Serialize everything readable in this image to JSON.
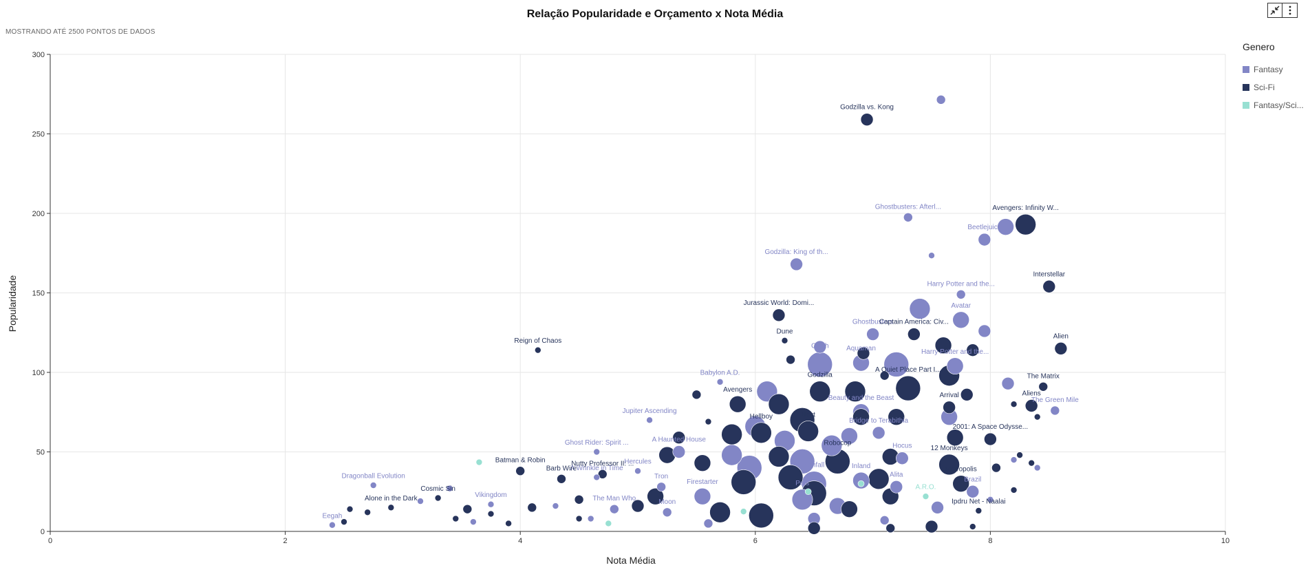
{
  "header": {
    "title": "Relação Popularidade e Orçamento x Nota Média",
    "subtitle": "MOSTRANDO ATÉ 2500 PONTOS DE DADOS"
  },
  "toolbar": {
    "collapse_icon": "collapse-arrows-icon",
    "menu_icon": "more-vertical-icon"
  },
  "legend": {
    "title": "Genero",
    "items": [
      {
        "label": "Fantasy",
        "color": "#8286c6"
      },
      {
        "label": "Sci-Fi",
        "color": "#27345b"
      },
      {
        "label": "Fantasy/Sci...",
        "color": "#98e0d2"
      }
    ]
  },
  "chart_data": {
    "type": "scatter",
    "title": "Relação Popularidade e Orçamento x Nota Média",
    "xlabel": "Nota Média",
    "ylabel": "Popularidade",
    "xlim": [
      0,
      10
    ],
    "ylim": [
      0,
      300
    ],
    "xticks": [
      "0",
      "2",
      "4",
      "6",
      "8",
      "10"
    ],
    "yticks": [
      "0",
      "50",
      "100",
      "150",
      "200",
      "250",
      "300"
    ],
    "grid": true,
    "legend_position": "right",
    "size_encodes": "Orçamento",
    "series": [
      {
        "name": "Fantasy",
        "color": "#8286c6",
        "points": [
          {
            "x": 7.58,
            "y": 271.5,
            "s": 2,
            "label": ""
          },
          {
            "x": 7.3,
            "y": 197.5,
            "s": 2,
            "label": "Ghostbusters: Afterl..."
          },
          {
            "x": 8.13,
            "y": 191.5,
            "s": 4,
            "label": ""
          },
          {
            "x": 7.95,
            "y": 183.5,
            "s": 3,
            "label": "Beetlejuice"
          },
          {
            "x": 7.5,
            "y": 173.5,
            "s": 1,
            "label": ""
          },
          {
            "x": 6.35,
            "y": 168.0,
            "s": 3,
            "label": "Godzilla: King of th..."
          },
          {
            "x": 7.75,
            "y": 149.0,
            "s": 2,
            "label": "Harry Potter and the..."
          },
          {
            "x": 7.4,
            "y": 140.0,
            "s": 5,
            "label": ""
          },
          {
            "x": 7.75,
            "y": 133.0,
            "s": 4,
            "label": "Avatar"
          },
          {
            "x": 7.95,
            "y": 126.0,
            "s": 3,
            "label": ""
          },
          {
            "x": 7.0,
            "y": 124.0,
            "s": 3,
            "label": "Ghostbusters"
          },
          {
            "x": 6.55,
            "y": 116.0,
            "s": 3,
            "label": ""
          },
          {
            "x": 6.55,
            "y": 105.0,
            "s": 6,
            "label": "Clash"
          },
          {
            "x": 6.9,
            "y": 106.0,
            "s": 4,
            "label": "Aquaman"
          },
          {
            "x": 7.2,
            "y": 105.0,
            "s": 6,
            "label": ""
          },
          {
            "x": 7.7,
            "y": 104.0,
            "s": 4,
            "label": "Harry Potter and the..."
          },
          {
            "x": 8.15,
            "y": 93.0,
            "s": 3,
            "label": ""
          },
          {
            "x": 6.1,
            "y": 88.0,
            "s": 5,
            "label": ""
          },
          {
            "x": 5.7,
            "y": 94.0,
            "s": 1,
            "label": "Babylon A.D."
          },
          {
            "x": 8.55,
            "y": 76.0,
            "s": 2,
            "label": "The Green Mile"
          },
          {
            "x": 6.9,
            "y": 75.0,
            "s": 4,
            "label": "Beauty and the Beast"
          },
          {
            "x": 7.65,
            "y": 72.0,
            "s": 4,
            "label": ""
          },
          {
            "x": 5.1,
            "y": 70.0,
            "s": 1,
            "label": "Jupiter Ascending"
          },
          {
            "x": 6.0,
            "y": 66.0,
            "s": 5,
            "label": ""
          },
          {
            "x": 6.8,
            "y": 60.0,
            "s": 4,
            "label": ""
          },
          {
            "x": 7.05,
            "y": 62.0,
            "s": 3,
            "label": "Bridge to Terabithia"
          },
          {
            "x": 4.65,
            "y": 50.0,
            "s": 1,
            "label": "Ghost Rider: Spirit ..."
          },
          {
            "x": 5.35,
            "y": 50.0,
            "s": 3,
            "label": "A Haunted House"
          },
          {
            "x": 5.8,
            "y": 48.0,
            "s": 5,
            "label": ""
          },
          {
            "x": 6.4,
            "y": 44.0,
            "s": 6,
            "label": ""
          },
          {
            "x": 7.25,
            "y": 46.0,
            "s": 3,
            "label": "Hocus"
          },
          {
            "x": 2.75,
            "y": 29.0,
            "s": 1,
            "label": "Dragonball Evolution"
          },
          {
            "x": 4.65,
            "y": 34.0,
            "s": 1,
            "label": "A Wrinkle in Time"
          },
          {
            "x": 5.0,
            "y": 38.0,
            "s": 1,
            "label": "Hercules"
          },
          {
            "x": 5.2,
            "y": 28.0,
            "s": 2,
            "label": "Tron"
          },
          {
            "x": 5.55,
            "y": 22.0,
            "s": 4,
            "label": "Firestarter"
          },
          {
            "x": 6.5,
            "y": 30.0,
            "s": 6,
            "label": "Ashfall"
          },
          {
            "x": 6.9,
            "y": 32.0,
            "s": 4,
            "label": "Inland"
          },
          {
            "x": 7.2,
            "y": 28.0,
            "s": 3,
            "label": "Alita"
          },
          {
            "x": 7.85,
            "y": 25.0,
            "s": 3,
            "label": "Brazil"
          },
          {
            "x": 3.4,
            "y": 27.0,
            "s": 1,
            "label": ""
          },
          {
            "x": 3.15,
            "y": 19.0,
            "s": 1,
            "label": ""
          },
          {
            "x": 3.75,
            "y": 17.0,
            "s": 1,
            "label": "Vikingdom"
          },
          {
            "x": 4.3,
            "y": 16.0,
            "s": 1,
            "label": ""
          },
          {
            "x": 4.8,
            "y": 14.0,
            "s": 2,
            "label": "The Man Who"
          },
          {
            "x": 5.25,
            "y": 12.0,
            "s": 2,
            "label": "Moon"
          },
          {
            "x": 6.4,
            "y": 20.0,
            "s": 5,
            "label": "Pets"
          },
          {
            "x": 6.7,
            "y": 16.0,
            "s": 4,
            "label": ""
          },
          {
            "x": 7.55,
            "y": 15.0,
            "s": 3,
            "label": ""
          },
          {
            "x": 2.4,
            "y": 4.0,
            "s": 1,
            "label": "Eegah"
          },
          {
            "x": 3.6,
            "y": 6.0,
            "s": 1,
            "label": ""
          },
          {
            "x": 4.6,
            "y": 8.0,
            "s": 1,
            "label": ""
          },
          {
            "x": 5.6,
            "y": 5.0,
            "s": 2,
            "label": ""
          },
          {
            "x": 6.5,
            "y": 8.0,
            "s": 3,
            "label": ""
          },
          {
            "x": 7.1,
            "y": 7.0,
            "s": 2,
            "label": ""
          },
          {
            "x": 8.0,
            "y": 20.0,
            "s": 1,
            "label": ""
          },
          {
            "x": 8.4,
            "y": 40.0,
            "s": 1,
            "label": ""
          },
          {
            "x": 8.2,
            "y": 45.0,
            "s": 1,
            "label": ""
          },
          {
            "x": 6.25,
            "y": 57.0,
            "s": 5,
            "label": ""
          },
          {
            "x": 5.95,
            "y": 40.0,
            "s": 6,
            "label": ""
          },
          {
            "x": 6.65,
            "y": 54.0,
            "s": 5,
            "label": ""
          }
        ]
      },
      {
        "name": "Sci-Fi",
        "color": "#27345b",
        "points": [
          {
            "x": 6.95,
            "y": 259.0,
            "s": 3,
            "label": "Godzilla vs. Kong"
          },
          {
            "x": 8.3,
            "y": 193.0,
            "s": 5,
            "label": "Avengers: Infinity W..."
          },
          {
            "x": 8.5,
            "y": 154.0,
            "s": 3,
            "label": "Interstellar"
          },
          {
            "x": 6.2,
            "y": 136.0,
            "s": 3,
            "label": "Jurassic World: Domi..."
          },
          {
            "x": 7.35,
            "y": 124.0,
            "s": 3,
            "label": "Captain America: Civ..."
          },
          {
            "x": 6.25,
            "y": 120.0,
            "s": 1,
            "label": "Dune"
          },
          {
            "x": 4.15,
            "y": 114.0,
            "s": 1,
            "label": "Reign of Chaos"
          },
          {
            "x": 8.6,
            "y": 115.0,
            "s": 3,
            "label": "Alien"
          },
          {
            "x": 7.6,
            "y": 117.0,
            "s": 4,
            "label": ""
          },
          {
            "x": 7.85,
            "y": 114.0,
            "s": 3,
            "label": ""
          },
          {
            "x": 6.92,
            "y": 112.0,
            "s": 3,
            "label": ""
          },
          {
            "x": 7.65,
            "y": 98.0,
            "s": 5,
            "label": ""
          },
          {
            "x": 8.45,
            "y": 91.0,
            "s": 2,
            "label": "The Matrix"
          },
          {
            "x": 7.3,
            "y": 90.0,
            "s": 6,
            "label": "A Quiet Place Part I..."
          },
          {
            "x": 6.85,
            "y": 88.0,
            "s": 5,
            "label": ""
          },
          {
            "x": 6.55,
            "y": 88.0,
            "s": 5,
            "label": "Godzilla"
          },
          {
            "x": 5.5,
            "y": 86.0,
            "s": 2,
            "label": ""
          },
          {
            "x": 8.35,
            "y": 79.0,
            "s": 3,
            "label": "Aliens"
          },
          {
            "x": 7.8,
            "y": 86.0,
            "s": 3,
            "label": ""
          },
          {
            "x": 7.65,
            "y": 78.0,
            "s": 3,
            "label": "Arrival"
          },
          {
            "x": 5.85,
            "y": 80.0,
            "s": 4,
            "label": "Avengers"
          },
          {
            "x": 6.2,
            "y": 80.0,
            "s": 5,
            "label": ""
          },
          {
            "x": 7.2,
            "y": 72.0,
            "s": 4,
            "label": ""
          },
          {
            "x": 6.9,
            "y": 72.0,
            "s": 4,
            "label": ""
          },
          {
            "x": 6.4,
            "y": 70.0,
            "s": 6,
            "label": ""
          },
          {
            "x": 6.05,
            "y": 62.0,
            "s": 5,
            "label": "Hellboy"
          },
          {
            "x": 6.45,
            "y": 63.0,
            "s": 5,
            "label": "Next"
          },
          {
            "x": 7.7,
            "y": 59.0,
            "s": 4,
            "label": ""
          },
          {
            "x": 8.0,
            "y": 58.0,
            "s": 3,
            "label": "2001: A Space Odysse..."
          },
          {
            "x": 5.35,
            "y": 59.0,
            "s": 3,
            "label": ""
          },
          {
            "x": 5.8,
            "y": 61.0,
            "s": 5,
            "label": ""
          },
          {
            "x": 6.7,
            "y": 44.0,
            "s": 6,
            "label": "Robocop"
          },
          {
            "x": 7.65,
            "y": 42.0,
            "s": 5,
            "label": "12 Monkeys"
          },
          {
            "x": 7.15,
            "y": 47.0,
            "s": 4,
            "label": ""
          },
          {
            "x": 6.2,
            "y": 47.0,
            "s": 5,
            "label": ""
          },
          {
            "x": 5.55,
            "y": 43.0,
            "s": 4,
            "label": ""
          },
          {
            "x": 5.25,
            "y": 48.0,
            "s": 4,
            "label": ""
          },
          {
            "x": 4.0,
            "y": 38.0,
            "s": 2,
            "label": "Batman & Robin"
          },
          {
            "x": 4.7,
            "y": 36.0,
            "s": 2,
            "label": "Nutty Professor II: ..."
          },
          {
            "x": 4.35,
            "y": 33.0,
            "s": 2,
            "label": "Barb Wire"
          },
          {
            "x": 7.75,
            "y": 30.0,
            "s": 4,
            "label": "Metropolis"
          },
          {
            "x": 6.3,
            "y": 34.0,
            "s": 6,
            "label": ""
          },
          {
            "x": 7.05,
            "y": 33.0,
            "s": 5,
            "label": ""
          },
          {
            "x": 5.9,
            "y": 31.0,
            "s": 6,
            "label": ""
          },
          {
            "x": 3.3,
            "y": 21.0,
            "s": 1,
            "label": "Cosmic Sin"
          },
          {
            "x": 2.9,
            "y": 15.0,
            "s": 1,
            "label": "Alone in the Dark"
          },
          {
            "x": 2.55,
            "y": 14.0,
            "s": 1,
            "label": ""
          },
          {
            "x": 2.5,
            "y": 6.0,
            "s": 1,
            "label": ""
          },
          {
            "x": 2.7,
            "y": 12.0,
            "s": 1,
            "label": ""
          },
          {
            "x": 3.45,
            "y": 8.0,
            "s": 1,
            "label": ""
          },
          {
            "x": 3.55,
            "y": 14.0,
            "s": 2,
            "label": ""
          },
          {
            "x": 3.9,
            "y": 5.0,
            "s": 1,
            "label": ""
          },
          {
            "x": 4.1,
            "y": 15.0,
            "s": 2,
            "label": ""
          },
          {
            "x": 4.5,
            "y": 8.0,
            "s": 1,
            "label": ""
          },
          {
            "x": 5.15,
            "y": 22.0,
            "s": 4,
            "label": ""
          },
          {
            "x": 5.7,
            "y": 12.0,
            "s": 5,
            "label": ""
          },
          {
            "x": 6.05,
            "y": 10.0,
            "s": 6,
            "label": ""
          },
          {
            "x": 6.5,
            "y": 24.0,
            "s": 6,
            "label": ""
          },
          {
            "x": 6.8,
            "y": 14.0,
            "s": 4,
            "label": ""
          },
          {
            "x": 6.5,
            "y": 2.0,
            "s": 3,
            "label": ""
          },
          {
            "x": 7.15,
            "y": 22.0,
            "s": 4,
            "label": ""
          },
          {
            "x": 7.5,
            "y": 3.0,
            "s": 3,
            "label": ""
          },
          {
            "x": 7.15,
            "y": 2.0,
            "s": 2,
            "label": ""
          },
          {
            "x": 7.9,
            "y": 13.0,
            "s": 1,
            "label": "Ipdru Net - Naalai"
          },
          {
            "x": 7.85,
            "y": 3.0,
            "s": 1,
            "label": ""
          },
          {
            "x": 8.2,
            "y": 26.0,
            "s": 1,
            "label": ""
          },
          {
            "x": 8.05,
            "y": 40.0,
            "s": 2,
            "label": ""
          },
          {
            "x": 8.25,
            "y": 48.0,
            "s": 1,
            "label": ""
          },
          {
            "x": 8.35,
            "y": 43.0,
            "s": 1,
            "label": ""
          },
          {
            "x": 8.4,
            "y": 72.0,
            "s": 1,
            "label": ""
          },
          {
            "x": 8.2,
            "y": 80.0,
            "s": 1,
            "label": ""
          },
          {
            "x": 5.6,
            "y": 69.0,
            "s": 1,
            "label": ""
          },
          {
            "x": 6.3,
            "y": 108.0,
            "s": 2,
            "label": ""
          },
          {
            "x": 7.1,
            "y": 98.0,
            "s": 2,
            "label": ""
          },
          {
            "x": 4.5,
            "y": 20.0,
            "s": 2,
            "label": ""
          },
          {
            "x": 5.0,
            "y": 16.0,
            "s": 3,
            "label": ""
          },
          {
            "x": 3.75,
            "y": 11.0,
            "s": 1,
            "label": ""
          }
        ]
      },
      {
        "name": "Fantasy/Sci...",
        "color": "#98e0d2",
        "points": [
          {
            "x": 3.65,
            "y": 43.5,
            "s": 1,
            "label": ""
          },
          {
            "x": 7.45,
            "y": 22.0,
            "s": 1,
            "label": "A.R.O."
          },
          {
            "x": 5.9,
            "y": 12.5,
            "s": 1,
            "label": ""
          },
          {
            "x": 4.75,
            "y": 5.0,
            "s": 1,
            "label": ""
          },
          {
            "x": 6.9,
            "y": 30.0,
            "s": 1,
            "label": ""
          },
          {
            "x": 6.45,
            "y": 25.0,
            "s": 1,
            "label": ""
          }
        ]
      }
    ]
  }
}
